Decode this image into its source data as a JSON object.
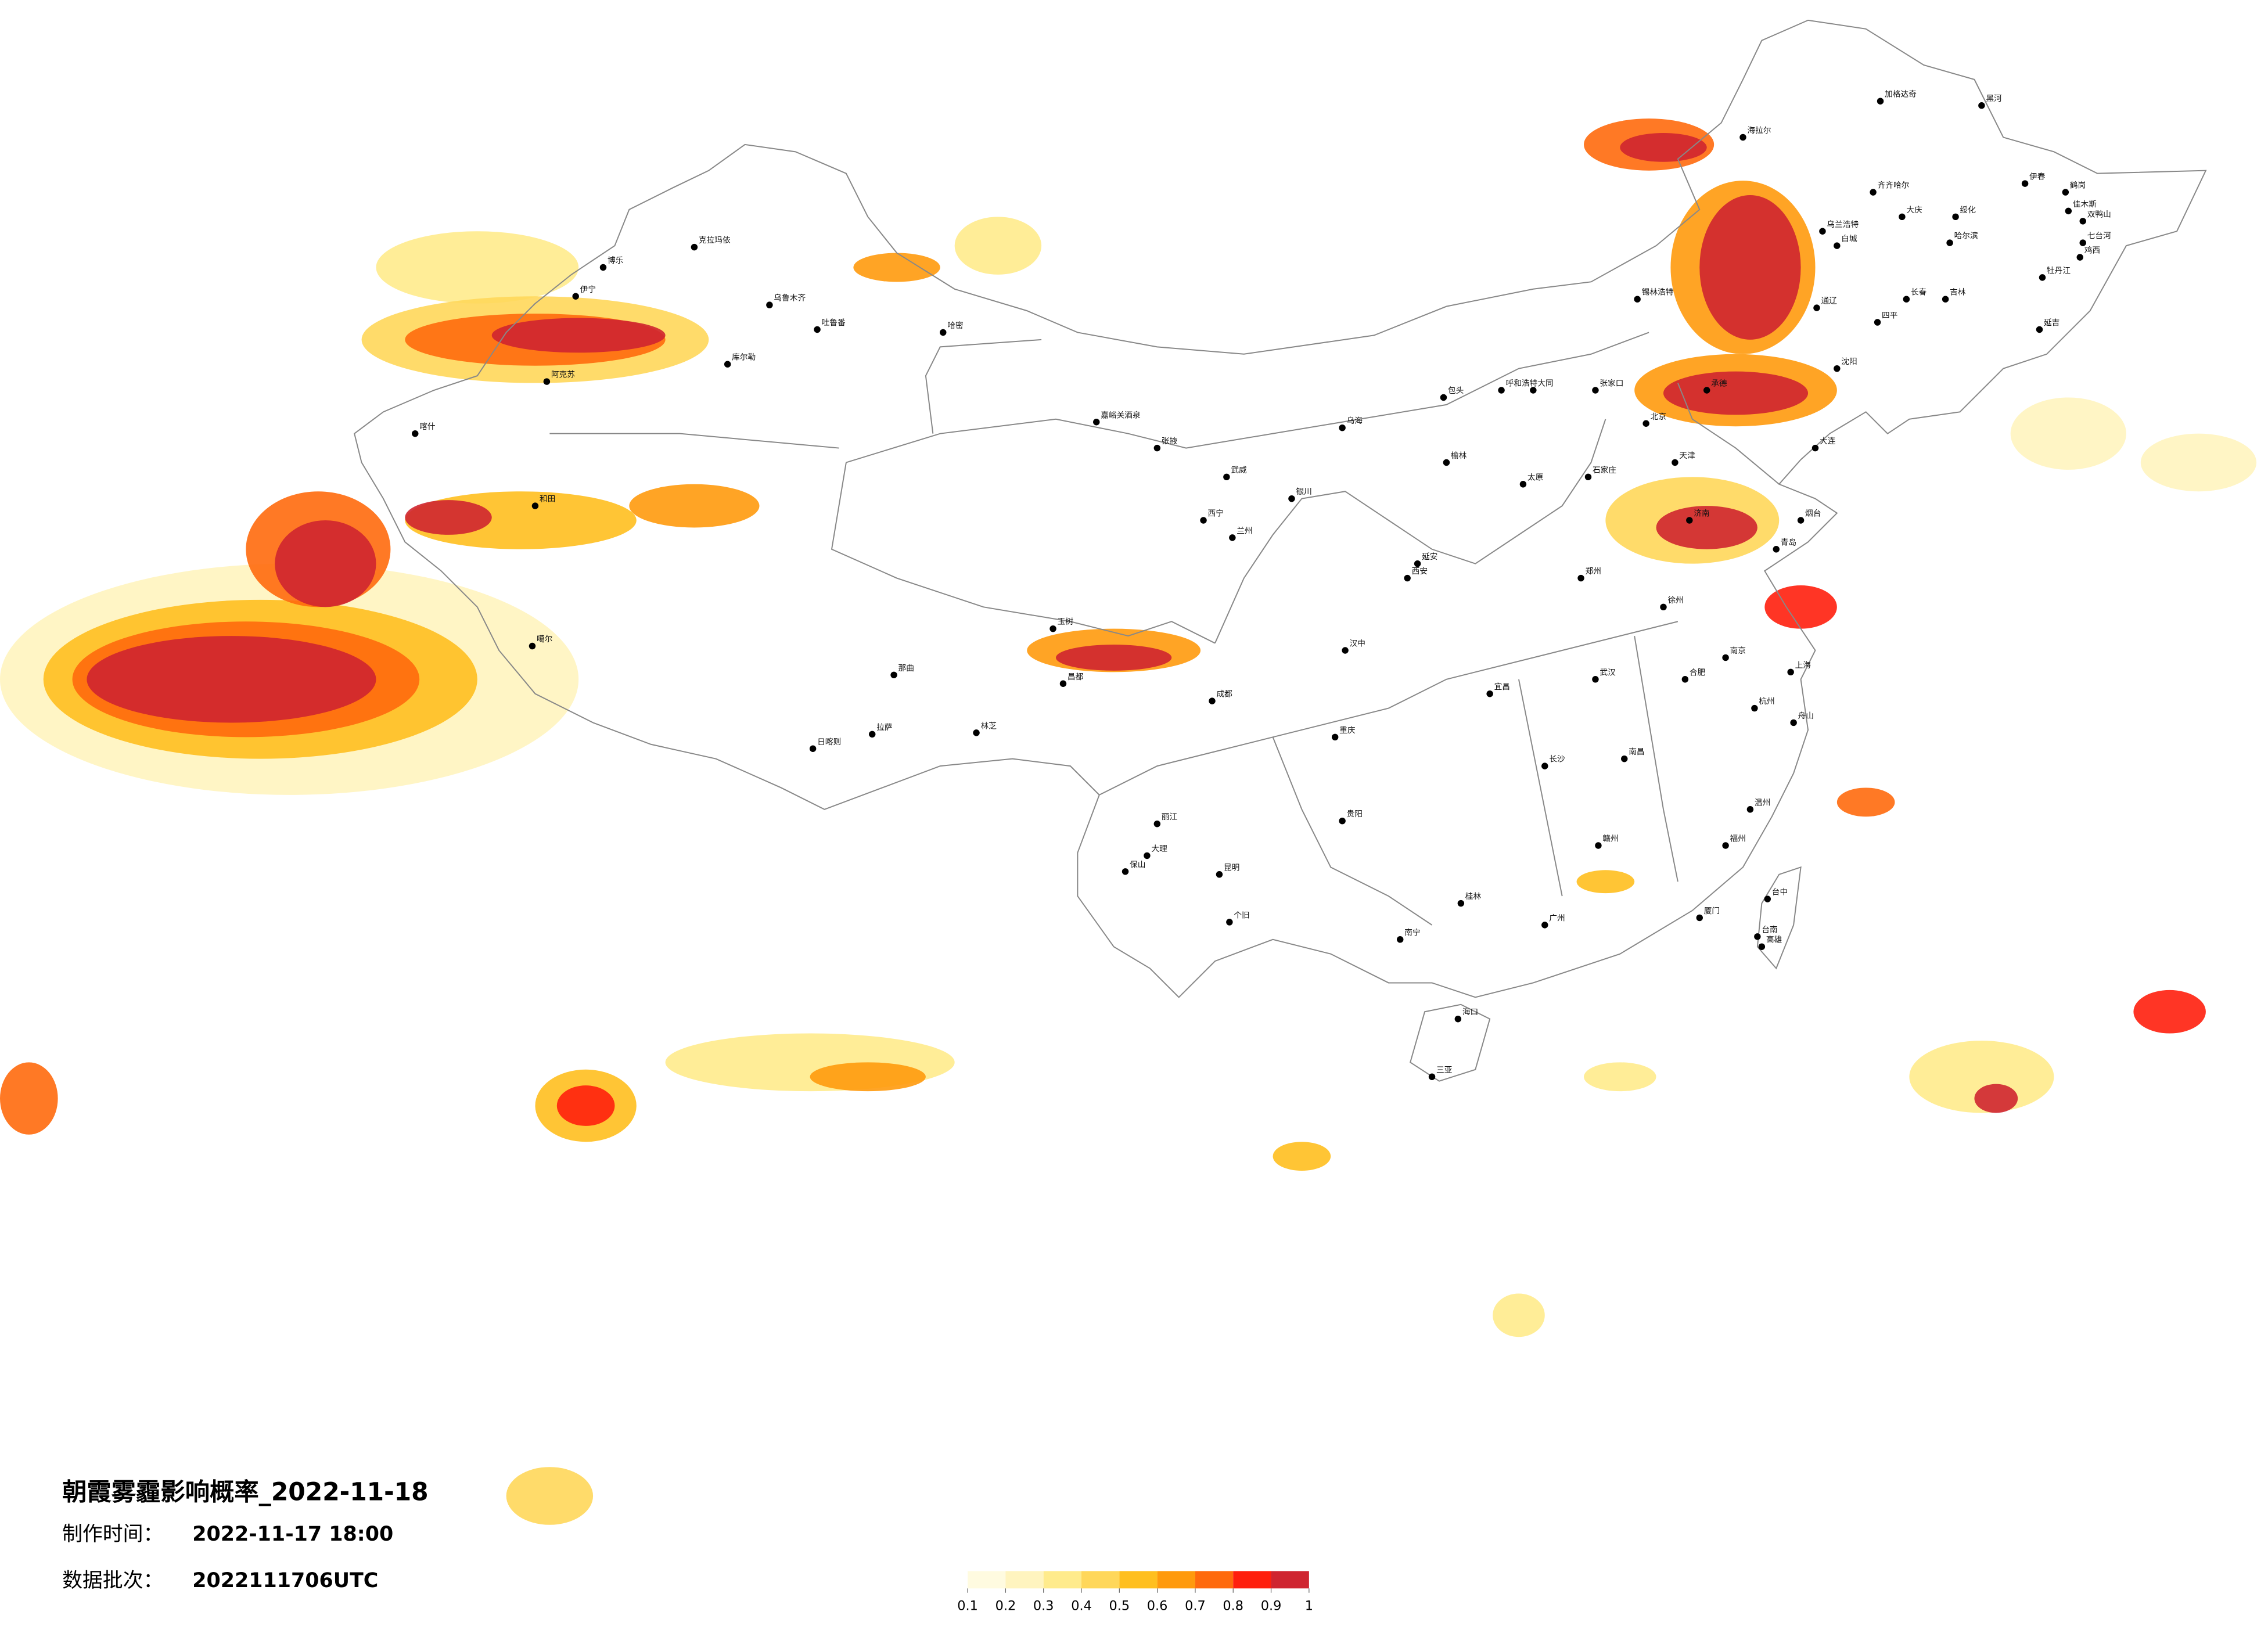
{
  "header": {
    "title": "朝霞雾霾影响概率_2022-11-18",
    "made_label": "制作时间：",
    "made_value": "2022-11-17 18:00",
    "batch_label": "数据批次：",
    "batch_value": "2022111706UTC"
  },
  "legend": {
    "ticks": [
      0.1,
      0.2,
      0.3,
      0.4,
      0.5,
      0.6,
      0.7,
      0.8,
      0.9,
      1
    ],
    "colors": [
      "#fffbe0",
      "#fff4bf",
      "#ffeb8c",
      "#ffd75a",
      "#ffbf1f",
      "#ff9a0d",
      "#ff6a0d",
      "#ff1f0d",
      "#cf2530"
    ]
  },
  "cities": [
    "加格达奇",
    "黑河",
    "海拉尔",
    "齐齐哈尔",
    "伊春",
    "鹤岗",
    "佳木斯",
    "双鸭山",
    "绥化",
    "大庆",
    "哈尔滨",
    "七台河",
    "鸡西",
    "乌兰浩特",
    "白城",
    "牡丹江",
    "长春",
    "吉林",
    "锡林浩特",
    "通辽",
    "四平",
    "延吉",
    "克拉玛依",
    "博乐",
    "伊宁",
    "乌鲁木齐",
    "吐鲁番",
    "哈密",
    "库尔勒",
    "阿克苏",
    "喀什",
    "和田",
    "噶尔",
    "日喀则",
    "拉萨",
    "林芝",
    "那曲",
    "昌都",
    "玉树",
    "嘉峪关酒泉",
    "张掖",
    "武威",
    "西宁",
    "兰州",
    "银川",
    "乌海",
    "包头",
    "呼和浩特",
    "张家口",
    "北京",
    "天津",
    "石家庄",
    "太原",
    "济南",
    "青岛",
    "郑州",
    "西安",
    "成都",
    "重庆",
    "武汉",
    "南京",
    "上海",
    "杭州",
    "长沙",
    "南昌",
    "福州",
    "贵阳",
    "昆明",
    "南宁",
    "广州",
    "海口",
    "三亚",
    "台中",
    "台南",
    "高雄",
    "丽江",
    "大理",
    "保山",
    "个旧",
    "桂林",
    "赣州",
    "厦门",
    "温州",
    "合肥",
    "宜昌",
    "汉中",
    "延安",
    "榆林",
    "大同",
    "承德",
    "沈阳",
    "大连",
    "烟台",
    "徐州",
    "舟山"
  ]
}
